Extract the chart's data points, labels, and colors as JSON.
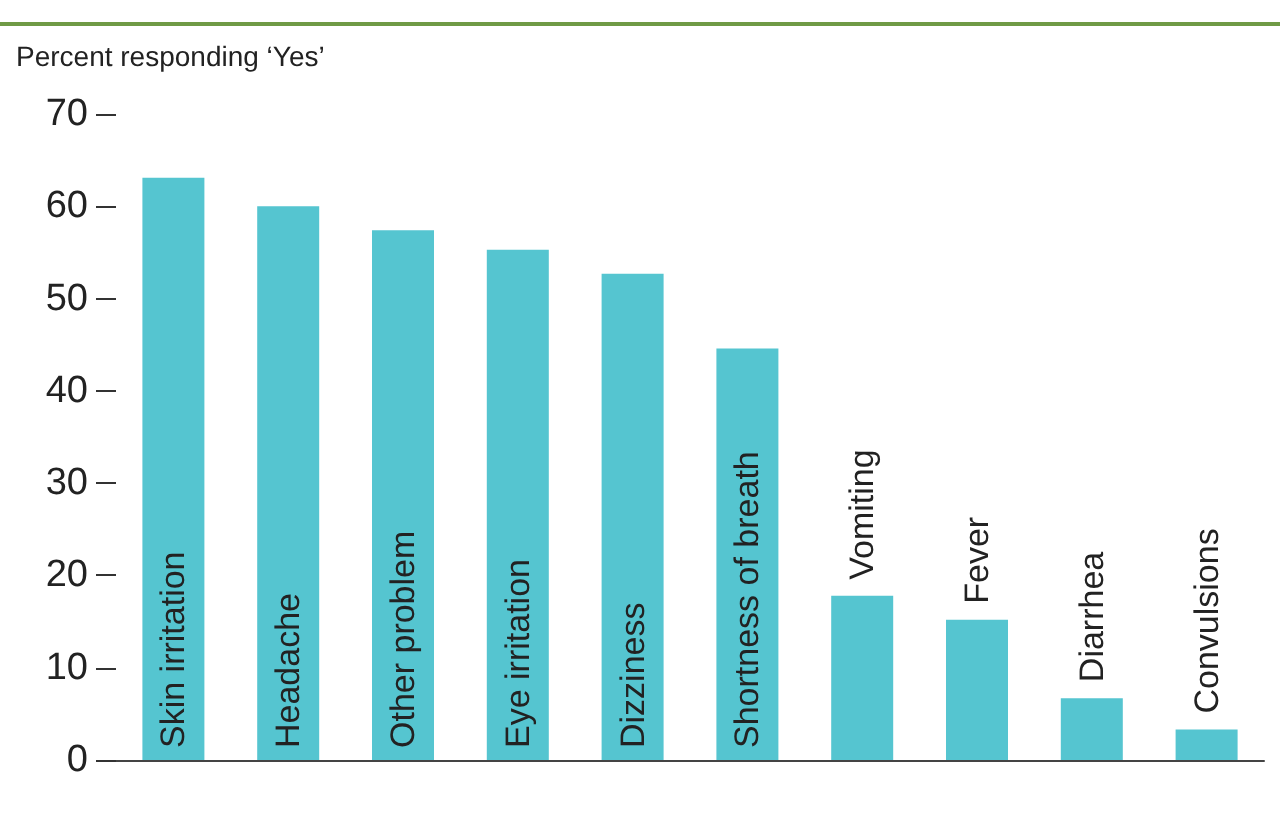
{
  "chart_data": {
    "type": "bar",
    "ylabel": "Percent responding ‘Yes’",
    "categories": [
      "Skin irritation",
      "Headache",
      "Other problem",
      "Eye irritation",
      "Dizziness",
      "Shortness of breath",
      "Vomiting",
      "Fever",
      "Diarrhea",
      "Convulsions"
    ],
    "values": [
      63.1,
      60,
      57.4,
      55.3,
      52.7,
      44.6,
      17.8,
      15.2,
      6.7,
      3.3
    ],
    "color": "#55c5d0",
    "ylim": [
      0,
      70
    ],
    "yticks": [
      0,
      10,
      20,
      30,
      40,
      50,
      60,
      70
    ],
    "grid": false
  }
}
